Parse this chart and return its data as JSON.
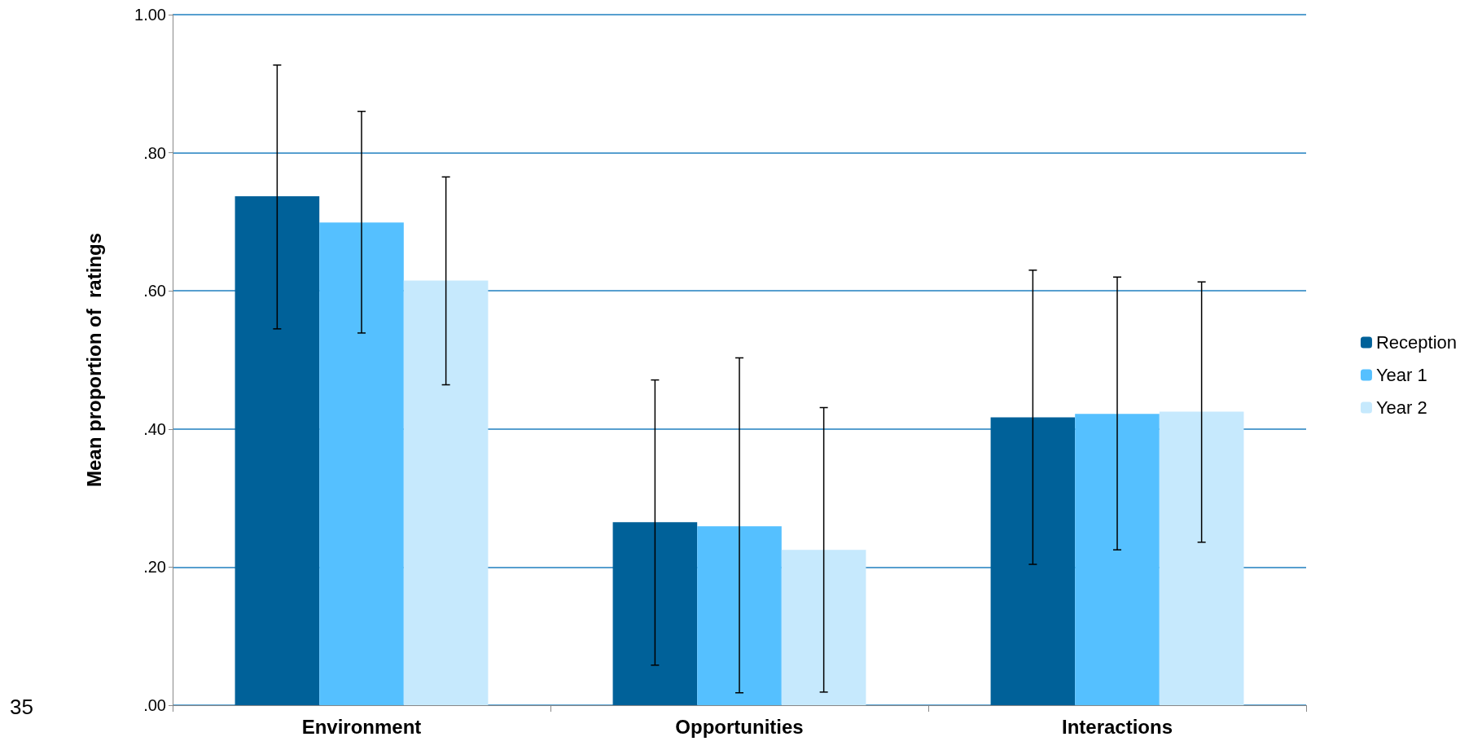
{
  "chart_data": {
    "type": "bar",
    "ylabel": "Mean proportion of  ratings",
    "categories": [
      "Environment",
      "Opportunities",
      "Interactions"
    ],
    "series": [
      {
        "name": "Reception",
        "color": "#006199",
        "values": [
          0.737,
          0.265,
          0.417
        ],
        "errors": [
          [
            0.545,
            0.927
          ],
          [
            0.058,
            0.471
          ],
          [
            0.204,
            0.63
          ]
        ]
      },
      {
        "name": "Year 1",
        "color": "#55c0ff",
        "values": [
          0.699,
          0.259,
          0.422
        ],
        "errors": [
          [
            0.539,
            0.86
          ],
          [
            0.018,
            0.503
          ],
          [
            0.225,
            0.62
          ]
        ]
      },
      {
        "name": "Year 2",
        "color": "#c6e9fd",
        "values": [
          0.615,
          0.225,
          0.425
        ],
        "errors": [
          [
            0.464,
            0.765
          ],
          [
            0.019,
            0.431
          ],
          [
            0.236,
            0.613
          ]
        ]
      }
    ],
    "ylim": [
      0,
      1
    ],
    "yticks": [
      {
        "value": 0,
        "label": ".00"
      },
      {
        "value": 0.2,
        "label": ".20"
      },
      {
        "value": 0.4,
        "label": ".40"
      },
      {
        "value": 0.6,
        "label": ".60"
      },
      {
        "value": 0.8,
        "label": ".80"
      },
      {
        "value": 1,
        "label": "1.00"
      }
    ],
    "grid": "y",
    "legend": "right",
    "annotations": [
      "35"
    ]
  }
}
